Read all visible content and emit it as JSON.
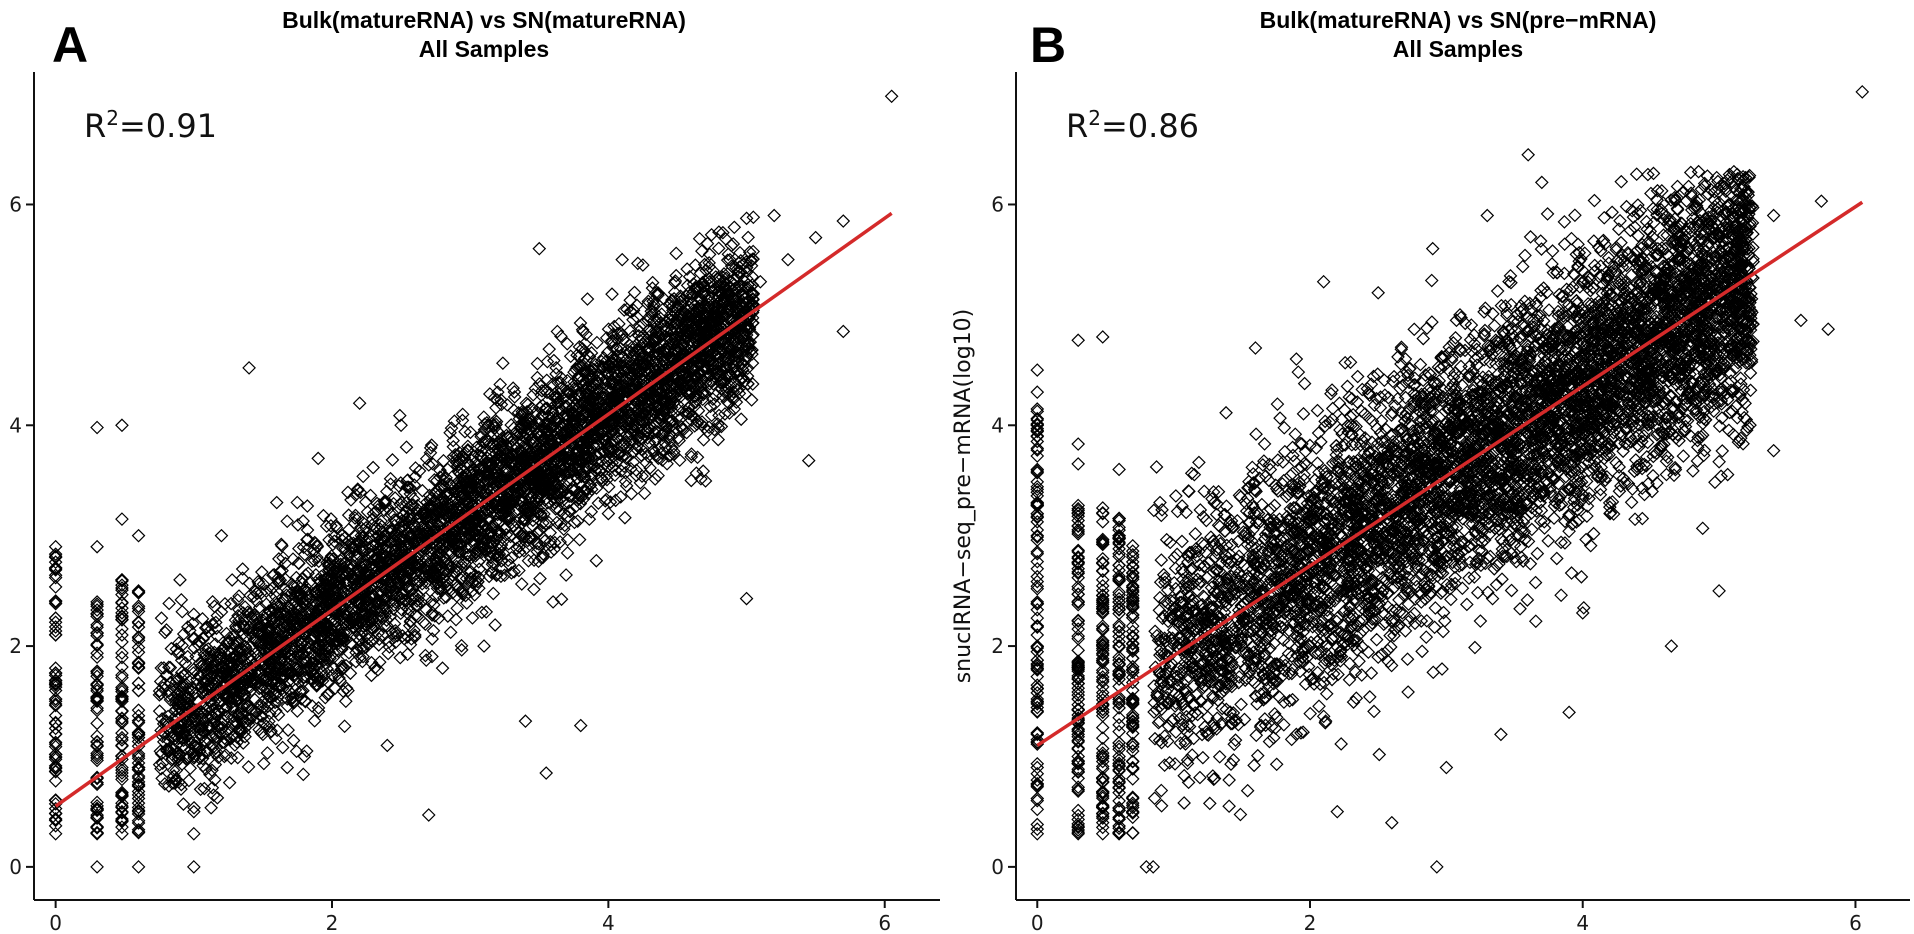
{
  "chart_data": [
    {
      "type": "scatter",
      "panel": "A",
      "title": "Bulk(matureRNA) vs SN(matureRNA)",
      "subtitle": "All Samples",
      "xlabel": "",
      "ylabel": "",
      "xlim": [
        -0.2,
        6.4
      ],
      "ylim": [
        -0.3,
        7.2
      ],
      "xticks": [
        0,
        2,
        4,
        6
      ],
      "yticks": [
        0,
        2,
        4,
        6
      ],
      "grid": false,
      "annotation": {
        "text_base": "R",
        "text_sup": "2",
        "text_value": "=0.91"
      },
      "fit_line": {
        "color": "#d42a2a",
        "x": [
          0,
          6.05
        ],
        "y": [
          0.55,
          5.92
        ]
      },
      "marker": "diamond-open",
      "point_color": "#000000",
      "points": [
        [
          0,
          0.3
        ],
        [
          0,
          0.6
        ],
        [
          0,
          0.9
        ],
        [
          0,
          1.2
        ],
        [
          0,
          1.5
        ],
        [
          0,
          1.8
        ],
        [
          0,
          2.1
        ],
        [
          0,
          2.4
        ],
        [
          0,
          2.7
        ],
        [
          0,
          2.9
        ],
        [
          0.3,
          0.0
        ],
        [
          0.3,
          0.3
        ],
        [
          0.3,
          0.8
        ],
        [
          0.3,
          1.3
        ],
        [
          0.3,
          1.9
        ],
        [
          0.3,
          2.4
        ],
        [
          0.3,
          2.9
        ],
        [
          0.3,
          3.98
        ],
        [
          0.48,
          0.3
        ],
        [
          0.48,
          0.9
        ],
        [
          0.48,
          1.5
        ],
        [
          0.48,
          2.1
        ],
        [
          0.48,
          2.6
        ],
        [
          0.48,
          3.15
        ],
        [
          0.48,
          4.0
        ],
        [
          0.6,
          0.0
        ],
        [
          0.6,
          0.5
        ],
        [
          0.6,
          1.2
        ],
        [
          0.6,
          1.8
        ],
        [
          0.6,
          2.5
        ],
        [
          0.6,
          3.0
        ],
        [
          1.0,
          0.0
        ],
        [
          1.0,
          0.3
        ],
        [
          1.0,
          0.5
        ],
        [
          1.4,
          4.52
        ],
        [
          1.2,
          3.0
        ],
        [
          1.6,
          3.3
        ],
        [
          1.9,
          3.7
        ],
        [
          3.5,
          5.6
        ],
        [
          4.1,
          5.5
        ],
        [
          4.8,
          5.75
        ],
        [
          5.2,
          5.9
        ],
        [
          5.5,
          5.7
        ],
        [
          5.7,
          5.85
        ],
        [
          6.05,
          6.98
        ],
        [
          5.7,
          4.85
        ],
        [
          5.45,
          3.68
        ],
        [
          4.85,
          4.7
        ],
        [
          4.6,
          3.5
        ],
        [
          4.3,
          4.0
        ],
        [
          5.0,
          2.43
        ],
        [
          3.55,
          0.85
        ],
        [
          3.4,
          1.32
        ],
        [
          3.8,
          1.28
        ],
        [
          2.7,
          0.47
        ],
        [
          2.8,
          1.8
        ],
        [
          3.1,
          2.0
        ],
        [
          3.6,
          2.4
        ],
        [
          2.2,
          4.2
        ],
        [
          2.5,
          4.0
        ],
        [
          2.1,
          1.5
        ],
        [
          1.8,
          1.0
        ],
        [
          2.4,
          1.1
        ],
        [
          4.0,
          3.2
        ],
        [
          3.2,
          4.3
        ],
        [
          1.3,
          2.0
        ],
        [
          1.5,
          1.2
        ],
        [
          1.9,
          2.6
        ],
        [
          2.3,
          3.2
        ],
        [
          2.6,
          2.1
        ],
        [
          3.0,
          3.5
        ],
        [
          3.3,
          2.8
        ],
        [
          3.7,
          3.6
        ],
        [
          4.2,
          4.5
        ],
        [
          4.5,
          4.8
        ],
        [
          4.7,
          5.2
        ],
        [
          5.1,
          5.3
        ],
        [
          5.3,
          5.5
        ],
        [
          0.8,
          1.3
        ],
        [
          0.9,
          2.6
        ]
      ]
    },
    {
      "type": "scatter",
      "panel": "B",
      "title": "Bulk(matureRNA) vs SN(pre−mRNA)",
      "subtitle": "All Samples",
      "xlabel": "",
      "ylabel": "snucIRNA−seq_pre−mRNA(log10)",
      "xlim": [
        -0.2,
        6.4
      ],
      "ylim": [
        -0.3,
        7.2
      ],
      "xticks": [
        0,
        2,
        4,
        6
      ],
      "yticks": [
        0,
        2,
        4,
        6
      ],
      "grid": false,
      "annotation": {
        "text_base": "R",
        "text_sup": "2",
        "text_value": "=0.86"
      },
      "fit_line": {
        "color": "#d42a2a",
        "x": [
          0,
          6.05
        ],
        "y": [
          1.1,
          6.02
        ]
      },
      "marker": "diamond-open",
      "point_color": "#000000",
      "points": [
        [
          0,
          0.3
        ],
        [
          0,
          0.6
        ],
        [
          0,
          0.9
        ],
        [
          0,
          1.2
        ],
        [
          0,
          1.5
        ],
        [
          0,
          1.8
        ],
        [
          0,
          2.1
        ],
        [
          0,
          2.4
        ],
        [
          0,
          2.7
        ],
        [
          0,
          3.0
        ],
        [
          0,
          3.3
        ],
        [
          0,
          3.6
        ],
        [
          0,
          4.0
        ],
        [
          0,
          4.3
        ],
        [
          0,
          4.5
        ],
        [
          0.3,
          0.3
        ],
        [
          0.3,
          0.7
        ],
        [
          0.3,
          1.2
        ],
        [
          0.3,
          1.7
        ],
        [
          0.3,
          2.2
        ],
        [
          0.3,
          2.7
        ],
        [
          0.3,
          3.2
        ],
        [
          0.3,
          3.65
        ],
        [
          0.3,
          3.83
        ],
        [
          0.3,
          4.77
        ],
        [
          0.48,
          0.3
        ],
        [
          0.48,
          0.8
        ],
        [
          0.48,
          1.4
        ],
        [
          0.48,
          2.0
        ],
        [
          0.48,
          2.6
        ],
        [
          0.48,
          3.2
        ],
        [
          0.48,
          4.8
        ],
        [
          0.6,
          0.3
        ],
        [
          0.6,
          1.0
        ],
        [
          0.6,
          1.7
        ],
        [
          0.6,
          2.4
        ],
        [
          0.6,
          3.0
        ],
        [
          0.6,
          3.6
        ],
        [
          0.8,
          0.0
        ],
        [
          0.85,
          0.0
        ],
        [
          0.9,
          3.3
        ],
        [
          3.6,
          6.45
        ],
        [
          3.7,
          6.2
        ],
        [
          4.5,
          6.1
        ],
        [
          4.8,
          5.95
        ],
        [
          5.05,
          6.12
        ],
        [
          5.2,
          6.12
        ],
        [
          5.4,
          5.9
        ],
        [
          5.75,
          6.03
        ],
        [
          6.05,
          7.02
        ],
        [
          5.4,
          3.77
        ],
        [
          5.8,
          4.87
        ],
        [
          5.6,
          4.95
        ],
        [
          5.0,
          2.5
        ],
        [
          4.65,
          2.0
        ],
        [
          4.2,
          3.2
        ],
        [
          4.4,
          3.6
        ],
        [
          2.93,
          0.0
        ],
        [
          2.2,
          0.5
        ],
        [
          2.6,
          0.4
        ],
        [
          3.0,
          0.9
        ],
        [
          3.4,
          1.2
        ],
        [
          3.9,
          1.4
        ],
        [
          4.0,
          2.3
        ],
        [
          1.6,
          4.7
        ],
        [
          1.9,
          4.6
        ],
        [
          2.1,
          5.3
        ],
        [
          2.5,
          5.2
        ],
        [
          2.9,
          5.6
        ],
        [
          3.3,
          5.9
        ],
        [
          1.2,
          1.5
        ],
        [
          1.5,
          2.0
        ],
        [
          1.8,
          2.4
        ],
        [
          2.1,
          2.7
        ],
        [
          2.4,
          3.1
        ],
        [
          2.8,
          3.4
        ],
        [
          3.2,
          3.8
        ],
        [
          3.6,
          4.1
        ],
        [
          4.0,
          4.4
        ],
        [
          4.3,
          4.7
        ],
        [
          4.6,
          5.0
        ],
        [
          1.4,
          2.8
        ],
        [
          1.7,
          3.5
        ],
        [
          2.3,
          4.0
        ],
        [
          2.7,
          4.6
        ],
        [
          3.1,
          5.0
        ],
        [
          1.3,
          0.8
        ],
        [
          1.9,
          1.2
        ],
        [
          2.5,
          1.9
        ],
        [
          3.5,
          2.8
        ],
        [
          3.8,
          3.3
        ]
      ]
    }
  ]
}
